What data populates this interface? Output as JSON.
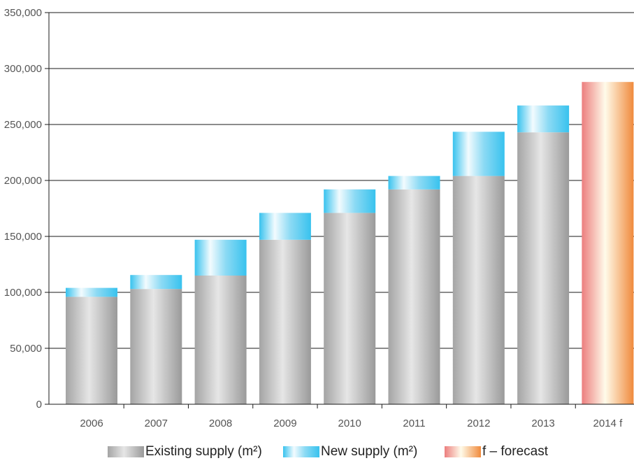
{
  "chart_data": {
    "type": "bar",
    "stacked": true,
    "categories": [
      "2006",
      "2007",
      "2008",
      "2009",
      "2010",
      "2011",
      "2012",
      "2013",
      "2014 f"
    ],
    "series": [
      {
        "name": "Existing supply (m²)",
        "values": [
          96000,
          103000,
          115000,
          147000,
          171000,
          192000,
          204000,
          243000,
          null
        ],
        "color": "#9a9a9a"
      },
      {
        "name": "New supply (m²)",
        "values": [
          8000,
          12500,
          32000,
          24000,
          21000,
          12000,
          39500,
          24000,
          null
        ],
        "color": "#3cc3ee"
      },
      {
        "name": "f – forecast",
        "values": [
          null,
          null,
          null,
          null,
          null,
          null,
          null,
          null,
          288000
        ],
        "color": "#f08a3c"
      }
    ],
    "y_ticks": [
      "0",
      "50,000",
      "100,000",
      "150,000",
      "200,000",
      "250,000",
      "300,000",
      "350,000"
    ],
    "ylim": [
      0,
      350000
    ],
    "grid": true,
    "legend": "bottom"
  }
}
